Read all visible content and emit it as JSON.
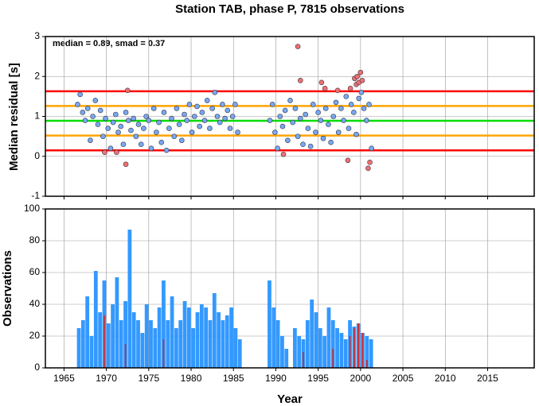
{
  "chart_data": [
    {
      "type": "scatter",
      "title": "Station TAB, phase P, 7815 observations",
      "ylabel": "Median residual [s]",
      "annotation": "median = 0.89, smad = 0.37",
      "xlim": [
        1962.8,
        2020.5
      ],
      "xticks": [
        1965,
        1970,
        1975,
        1980,
        1985,
        1990,
        1995,
        2000,
        2005,
        2010,
        2015
      ],
      "ylim": [
        -1,
        3
      ],
      "yticks": [
        -1,
        0,
        1,
        2,
        3
      ],
      "grid": true,
      "hlines": [
        {
          "value": 0.15,
          "color": "#ff0000"
        },
        {
          "value": 1.63,
          "color": "#ff0000"
        },
        {
          "value": 0.52,
          "color": "#ffa500"
        },
        {
          "value": 1.26,
          "color": "#ffa500"
        },
        {
          "value": 0.89,
          "color": "#00dd00"
        }
      ],
      "series": [
        {
          "color": "#78a8f0",
          "x": [
            1966.6,
            1966.9,
            1967.2,
            1967.5,
            1967.8,
            1968.1,
            1968.4,
            1968.7,
            1969.0,
            1969.3,
            1969.6,
            1969.9,
            1970.2,
            1970.5,
            1970.8,
            1971.1,
            1971.4,
            1971.7,
            1972.0,
            1972.3,
            1972.6,
            1972.9,
            1973.2,
            1973.5,
            1973.8,
            1974.1,
            1974.4,
            1974.7,
            1975.0,
            1975.3,
            1975.6,
            1975.9,
            1976.2,
            1976.5,
            1976.8,
            1977.1,
            1977.4,
            1977.7,
            1978.0,
            1978.3,
            1978.6,
            1978.9,
            1979.2,
            1979.5,
            1979.8,
            1980.1,
            1980.4,
            1980.7,
            1981.0,
            1981.3,
            1981.6,
            1981.9,
            1982.2,
            1982.5,
            1982.8,
            1983.1,
            1983.4,
            1983.7,
            1984.0,
            1984.3,
            1984.6,
            1984.9,
            1985.2,
            1985.5,
            1989.3,
            1989.6,
            1989.9,
            1990.2,
            1990.5,
            1990.8,
            1991.1,
            1991.4,
            1991.7,
            1992.0,
            1992.3,
            1992.6,
            1992.9,
            1993.2,
            1993.5,
            1993.8,
            1994.1,
            1994.4,
            1994.7,
            1995.0,
            1995.3,
            1995.6,
            1995.9,
            1996.2,
            1996.5,
            1996.8,
            1997.1,
            1997.4,
            1997.7,
            1998.0,
            1998.3,
            1998.6,
            1998.9,
            1999.2,
            1999.5,
            1999.8,
            2000.1,
            2000.4,
            2000.7,
            2001.0,
            2001.3
          ],
          "values": [
            1.3,
            1.55,
            1.1,
            0.9,
            1.2,
            0.4,
            1.0,
            1.4,
            0.8,
            1.15,
            0.5,
            0.95,
            0.7,
            0.2,
            0.85,
            1.05,
            0.6,
            0.75,
            0.3,
            1.1,
            0.9,
            0.65,
            0.95,
            0.5,
            0.8,
            0.3,
            0.7,
            1.0,
            0.9,
            0.2,
            1.2,
            0.6,
            0.85,
            0.35,
            1.1,
            0.15,
            0.7,
            0.95,
            0.5,
            1.2,
            0.8,
            0.4,
            1.05,
            0.9,
            1.3,
            0.6,
            1.0,
            1.25,
            0.75,
            1.1,
            0.9,
            1.4,
            0.7,
            1.2,
            1.6,
            1.0,
            0.85,
            1.3,
            0.95,
            1.15,
            0.7,
            1.0,
            1.3,
            0.6,
            0.9,
            1.3,
            0.6,
            0.2,
            1.0,
            0.75,
            1.15,
            0.4,
            1.4,
            0.85,
            1.2,
            0.5,
            0.95,
            0.3,
            1.05,
            0.7,
            0.25,
            1.3,
            0.6,
            1.1,
            0.9,
            0.45,
            1.2,
            0.8,
            0.35,
            1.0,
            1.35,
            0.6,
            1.2,
            0.9,
            1.5,
            0.7,
            1.3,
            1.1,
            0.55,
            1.45,
            1.6,
            1.2,
            0.9,
            1.3,
            0.2
          ]
        },
        {
          "color": "#f07070",
          "x": [
            1969.8,
            1971.2,
            1972.3,
            1972.5,
            1990.9,
            1992.6,
            1992.9,
            1995.4,
            1995.8,
            1997.3,
            1998.5,
            1998.8,
            1999.3,
            1999.5,
            1999.6,
            1999.8,
            2000.0,
            2000.2,
            2000.9,
            2001.1
          ],
          "values": [
            0.1,
            0.1,
            -0.2,
            1.65,
            0.05,
            2.75,
            1.9,
            1.85,
            1.7,
            1.65,
            -0.1,
            1.7,
            1.95,
            1.8,
            2.0,
            1.85,
            2.1,
            1.9,
            -0.3,
            -0.15
          ]
        }
      ]
    },
    {
      "type": "histogram",
      "xlabel": "Year",
      "ylabel": "Observations",
      "xlim": [
        1962.8,
        2020.5
      ],
      "xticks": [
        1965,
        1970,
        1975,
        1980,
        1985,
        1990,
        1995,
        2000,
        2005,
        2010,
        2015
      ],
      "ylim": [
        0,
        100
      ],
      "yticks": [
        0,
        20,
        40,
        60,
        80,
        100
      ],
      "grid": true,
      "bins": [
        1966.5,
        1967.0,
        1967.5,
        1968.0,
        1968.5,
        1969.0,
        1969.5,
        1970.0,
        1970.5,
        1971.0,
        1971.5,
        1972.0,
        1972.5,
        1973.0,
        1973.5,
        1974.0,
        1974.5,
        1975.0,
        1975.5,
        1976.0,
        1976.5,
        1977.0,
        1977.5,
        1978.0,
        1978.5,
        1979.0,
        1979.5,
        1980.0,
        1980.5,
        1981.0,
        1981.5,
        1982.0,
        1982.5,
        1983.0,
        1983.5,
        1984.0,
        1984.5,
        1985.0,
        1985.5,
        1986.0,
        1986.5,
        1987.0,
        1987.5,
        1988.0,
        1988.5,
        1989.0,
        1989.5,
        1990.0,
        1990.5,
        1991.0,
        1991.5,
        1992.0,
        1992.5,
        1993.0,
        1993.5,
        1994.0,
        1994.5,
        1995.0,
        1995.5,
        1996.0,
        1996.5,
        1997.0,
        1997.5,
        1998.0,
        1998.5,
        1999.0,
        1999.5,
        2000.0,
        2000.5,
        2001.0,
        2001.5
      ],
      "series": [
        {
          "color": "#3399ff",
          "values": [
            25,
            30,
            45,
            20,
            61,
            35,
            55,
            28,
            40,
            57,
            30,
            42,
            87,
            35,
            30,
            22,
            40,
            30,
            25,
            38,
            55,
            30,
            45,
            25,
            30,
            42,
            38,
            25,
            35,
            40,
            38,
            30,
            47,
            35,
            30,
            33,
            38,
            25,
            18,
            0,
            0,
            0,
            0,
            0,
            0,
            55,
            38,
            30,
            20,
            12,
            0,
            25,
            20,
            18,
            30,
            43,
            35,
            25,
            20,
            38,
            30,
            25,
            22,
            18,
            30,
            26,
            28,
            22,
            20,
            18
          ]
        },
        {
          "color": "#dd2222",
          "values": [
            0,
            0,
            0,
            0,
            0,
            0,
            33,
            0,
            0,
            0,
            0,
            15,
            0,
            0,
            0,
            0,
            0,
            0,
            0,
            0,
            18,
            0,
            0,
            0,
            0,
            0,
            0,
            0,
            0,
            0,
            0,
            0,
            0,
            0,
            0,
            0,
            0,
            0,
            0,
            0,
            0,
            0,
            0,
            0,
            0,
            0,
            0,
            0,
            0,
            0,
            0,
            0,
            0,
            10,
            0,
            0,
            0,
            0,
            0,
            0,
            12,
            0,
            0,
            0,
            20,
            25,
            28,
            22,
            5,
            0
          ]
        }
      ]
    }
  ]
}
